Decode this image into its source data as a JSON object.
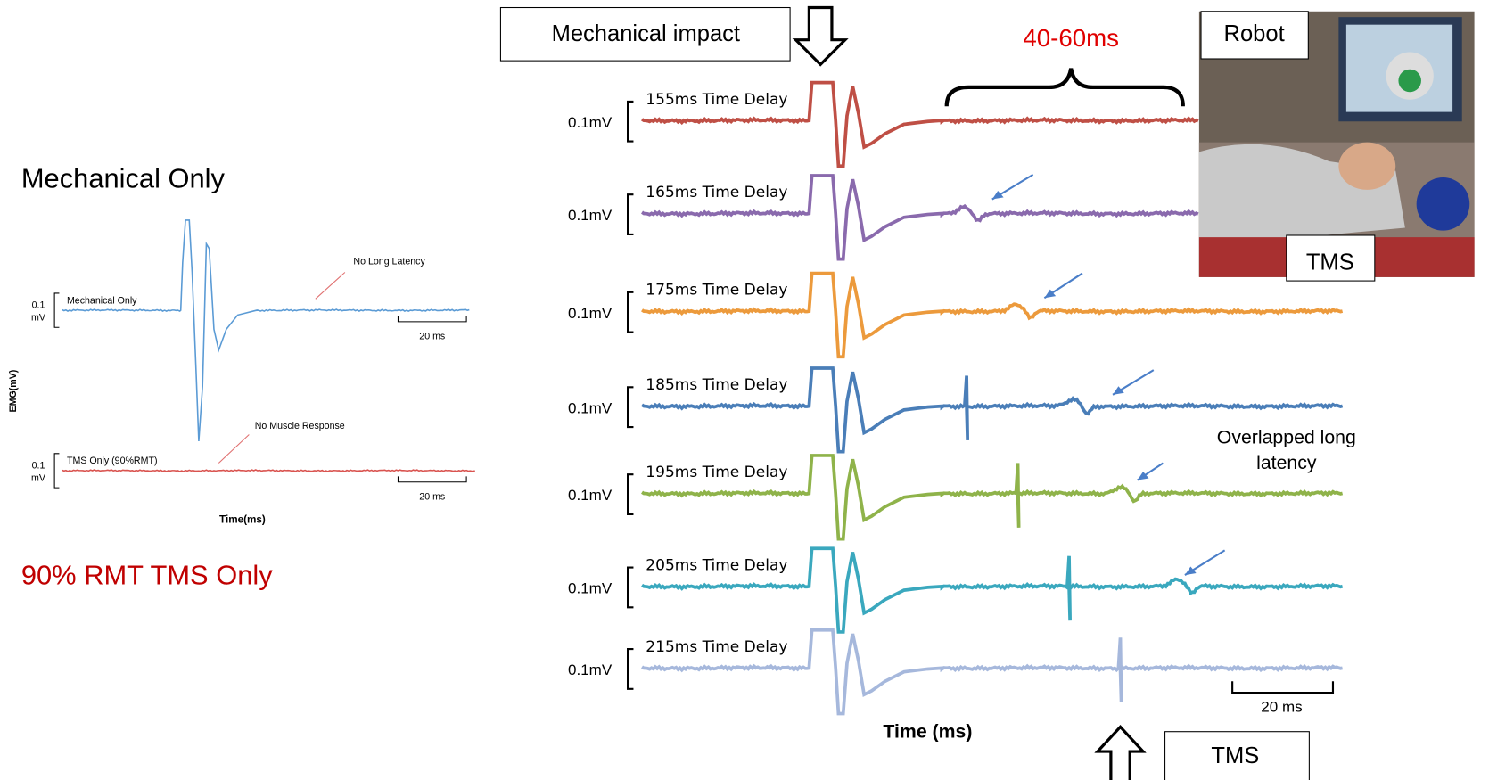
{
  "left_panel": {
    "title": "Mechanical Only",
    "caption": "90% RMT TMS Only",
    "y_axis_label": "EMG(mV)",
    "x_axis_label": "Time(ms)",
    "traces": [
      {
        "label": "Mechanical Only",
        "scale_value": "0.1",
        "scale_unit": "mV",
        "annotation": "No Long Latency",
        "time_scale": "20 ms"
      },
      {
        "label": "TMS Only (90%RMT)",
        "scale_value": "0.1",
        "scale_unit": "mV",
        "annotation": "No Muscle Response",
        "time_scale": "20 ms"
      }
    ]
  },
  "right_panel": {
    "impact_label": "Mechanical impact",
    "window_label": "40-60ms",
    "traces": [
      {
        "label": "155ms Time Delay",
        "scale": "0.1mV"
      },
      {
        "label": "165ms Time Delay",
        "scale": "0.1mV"
      },
      {
        "label": "175ms Time Delay",
        "scale": "0.1mV"
      },
      {
        "label": "185ms Time Delay",
        "scale": "0.1mV"
      },
      {
        "label": "195ms Time Delay",
        "scale": "0.1mV"
      },
      {
        "label": "205ms Time Delay",
        "scale": "0.1mV"
      },
      {
        "label": "215ms Time Delay",
        "scale": "0.1mV"
      }
    ],
    "overlap_label": [
      "Overlapped long",
      "latency"
    ],
    "time_scale": "20 ms",
    "x_axis_label": "Time (ms)",
    "tms_label": "TMS"
  },
  "photo": {
    "robot_label": "Robot",
    "tms_label": "TMS"
  }
}
